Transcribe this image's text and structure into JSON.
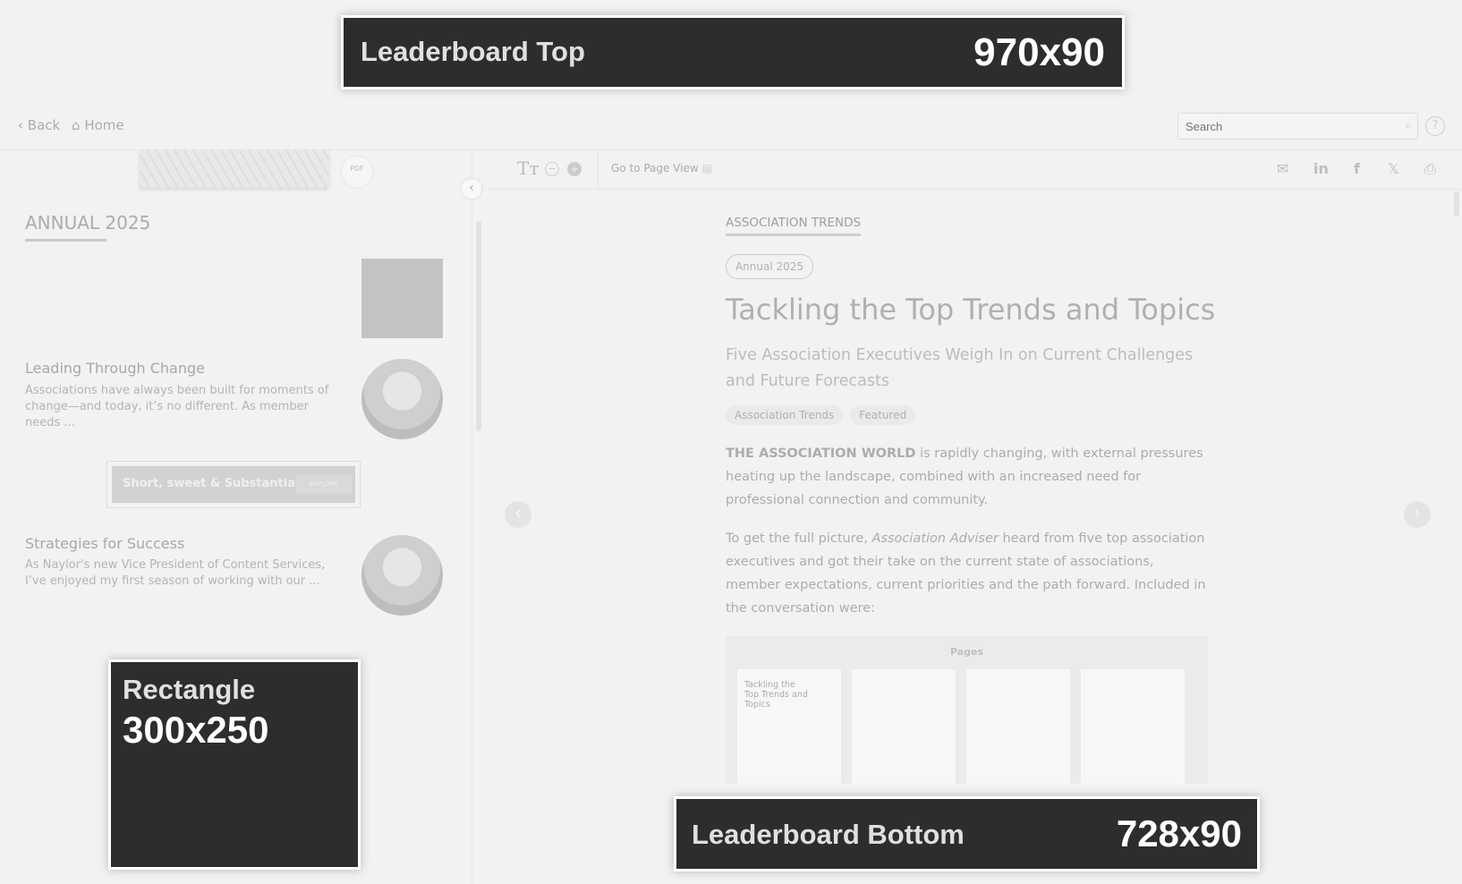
{
  "ads": {
    "top": {
      "label": "Leaderboard Top",
      "size": "970x90"
    },
    "rect": {
      "label": "Rectangle",
      "size": "300x250"
    },
    "bottom": {
      "label": "Leaderboard Bottom",
      "size": "728x90"
    }
  },
  "nav": {
    "back": "Back",
    "home": "Home",
    "search_placeholder": "Search",
    "help": "?"
  },
  "toolbar": {
    "text_size": "Tт",
    "minus": "−",
    "plus": "+",
    "page_view": "Go to Page View",
    "pdf": "PDF"
  },
  "sidebar": {
    "section": "ANNUAL 2025",
    "items": [
      {
        "title": "Leading Through Change",
        "desc": "Associations have always been built for moments of change—and today, it’s no different. As member needs ..."
      },
      {
        "title": "Strategies for Success",
        "desc": "As Naylor's new Vice President of Content Services, I’ve enjoyed my first season of working with our ..."
      }
    ],
    "banner": {
      "text": "Short, sweet & Substantial.",
      "button": "EXPLORE"
    }
  },
  "article": {
    "category": "ASSOCIATION TRENDS",
    "issue": "Annual 2025",
    "title": "Tackling the Top Trends and Topics",
    "subtitle": "Five Association Executives Weigh In on Current Challenges and Future Forecasts",
    "tags": [
      "Association Trends",
      "Featured"
    ],
    "p1_lead": "THE ASSOCIATION WORLD",
    "p1": " is rapidly changing, with external pressures heating up the landscape, combined with an increased need for professional connection and community.",
    "p2_a": "To get the full picture, ",
    "p2_em": "Association Adviser",
    "p2_b": " heard from five top association executives and got their take on the current state of associations, member expectations, current priorities and the path forward. Included in the conversation were:",
    "pages_label": "Pages",
    "page1_title": "Tackling the Top Trends and Topics"
  }
}
